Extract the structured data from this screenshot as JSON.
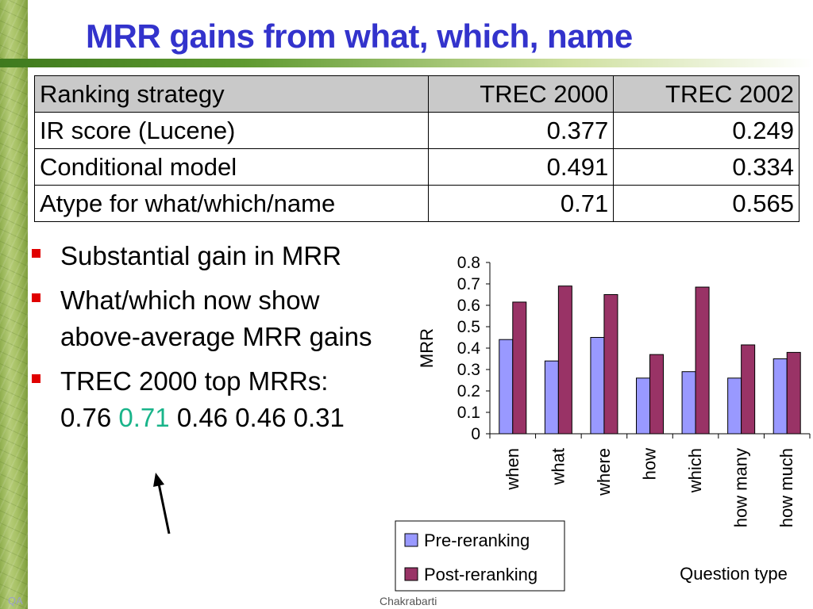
{
  "slide": {
    "title": "MRR gains from what, which, name",
    "footer_left": "QA",
    "footer_center": "Chakrabarti"
  },
  "table": {
    "headers": [
      "Ranking strategy",
      "TREC 2000",
      "TREC 2002"
    ],
    "rows": [
      [
        "IR score (Lucene)",
        "0.377",
        "0.249"
      ],
      [
        "Conditional model",
        "0.491",
        "0.334"
      ],
      [
        "Atype for what/which/name",
        "0.71",
        "0.565"
      ]
    ]
  },
  "bullets": {
    "b1": "Substantial gain in MRR",
    "b2": "What/which now show above-average MRR gains",
    "b3_prefix": "TREC 2000 top MRRs:",
    "b3_v1": "0.76",
    "b3_v2": "0.71",
    "b3_rest": "0.46 0.46 0.31"
  },
  "colors": {
    "title": "#3333cc",
    "bullet": "#e00000",
    "highlight": "#19b48a",
    "pre": "#9999ff",
    "post": "#993366"
  },
  "chart_data": {
    "type": "bar",
    "categories": [
      "when",
      "what",
      "where",
      "how",
      "which",
      "how many",
      "how much"
    ],
    "series": [
      {
        "name": "Pre-reranking",
        "color": "#9999ff",
        "values": [
          0.44,
          0.34,
          0.45,
          0.26,
          0.29,
          0.26,
          0.35
        ]
      },
      {
        "name": "Post-reranking",
        "color": "#993366",
        "values": [
          0.615,
          0.69,
          0.65,
          0.37,
          0.685,
          0.415,
          0.38
        ]
      }
    ],
    "ylabel": "MRR",
    "xlabel": "Question type",
    "ylim": [
      0,
      0.8
    ],
    "yticks": [
      "0",
      "0.1",
      "0.2",
      "0.3",
      "0.4",
      "0.5",
      "0.6",
      "0.7",
      "0.8"
    ],
    "legend_position": "bottom-left",
    "grid": false
  }
}
